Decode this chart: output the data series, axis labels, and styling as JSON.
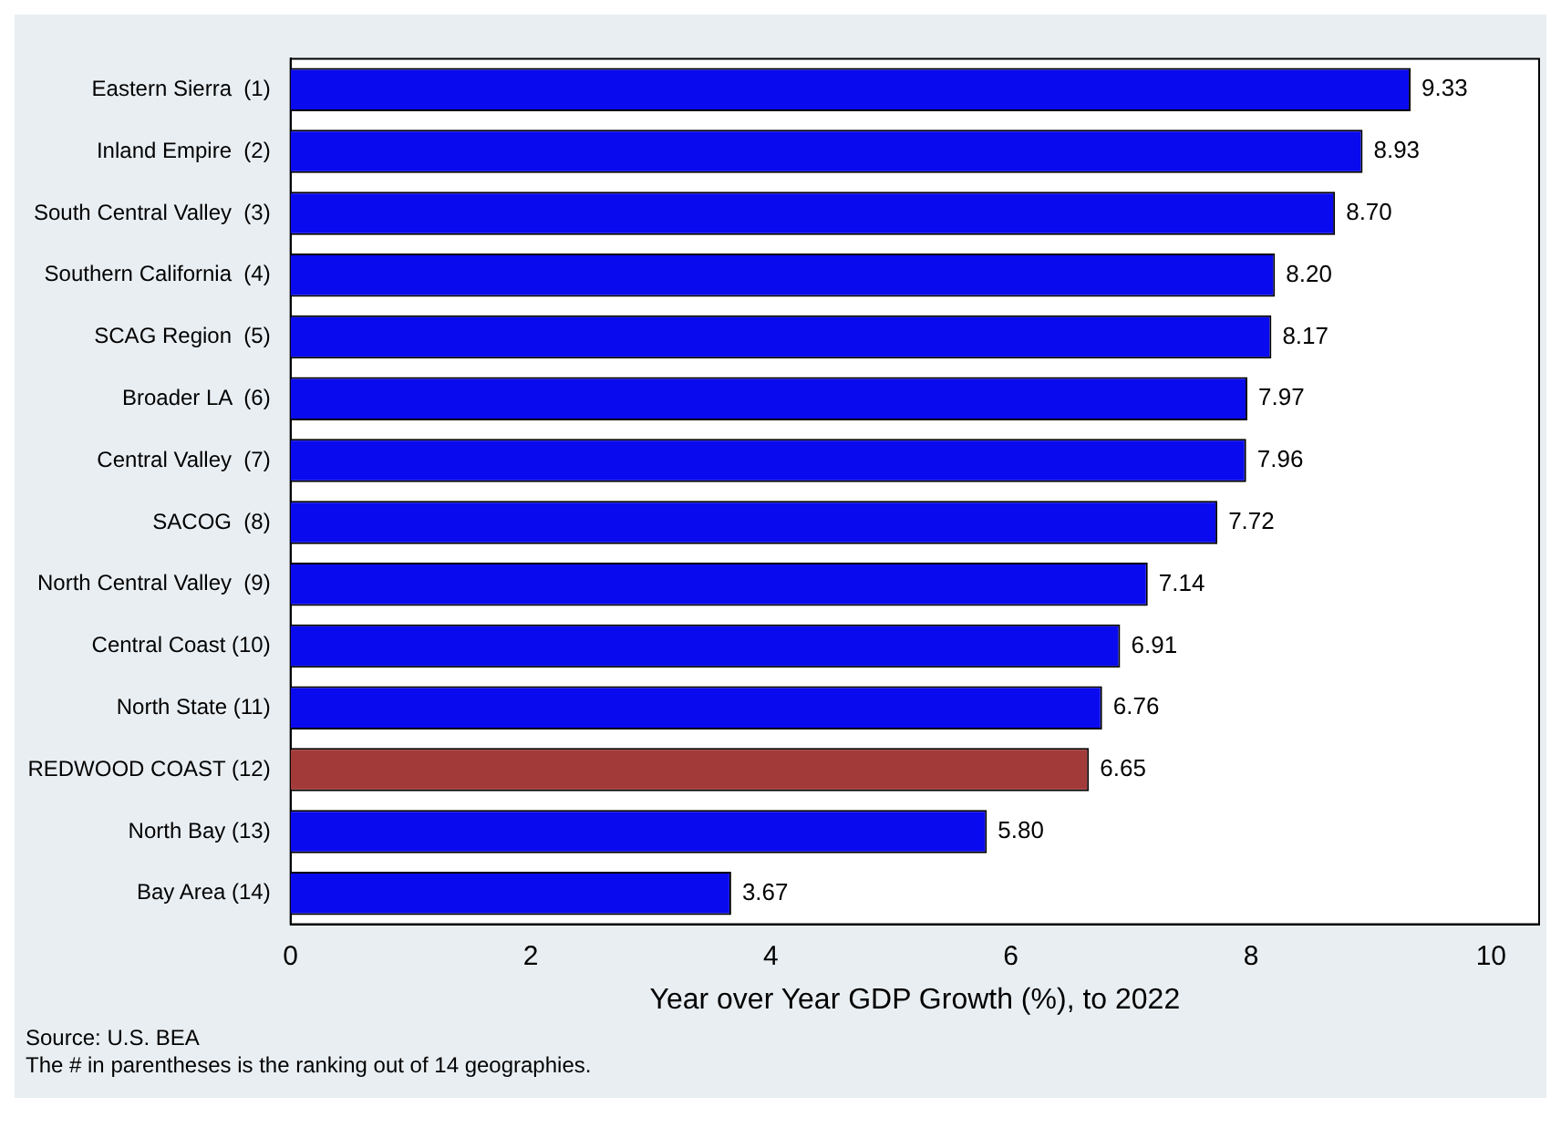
{
  "chart_data": {
    "type": "bar",
    "orientation": "horizontal",
    "xlabel": "Year over Year GDP Growth (%), to 2022",
    "categories": [
      "Eastern Sierra  (1)",
      "Inland Empire  (2)",
      "South Central Valley  (3)",
      "Southern California  (4)",
      "SCAG Region  (5)",
      "Broader LA  (6)",
      "Central Valley  (7)",
      "SACOG  (8)",
      "North Central Valley  (9)",
      "Central Coast (10)",
      "North State (11)",
      "REDWOOD COAST (12)",
      "North Bay (13)",
      "Bay Area (14)"
    ],
    "values": [
      9.33,
      8.93,
      8.7,
      8.2,
      8.17,
      7.97,
      7.96,
      7.72,
      7.14,
      6.91,
      6.76,
      6.65,
      5.8,
      3.67
    ],
    "value_labels": [
      "9.33",
      "8.93",
      "8.70",
      "8.20",
      "8.17",
      "7.97",
      "7.96",
      "7.72",
      "7.14",
      "6.91",
      "6.76",
      "6.65",
      "5.80",
      "3.67"
    ],
    "colors": [
      "#0a0aee",
      "#0a0aee",
      "#0a0aee",
      "#0a0aee",
      "#0a0aee",
      "#0a0aee",
      "#0a0aee",
      "#0a0aee",
      "#0a0aee",
      "#0a0aee",
      "#0a0aee",
      "#a33a3a",
      "#0a0aee",
      "#0a0aee"
    ],
    "xlim": [
      0,
      10.4
    ],
    "xticks": [
      0,
      2,
      4,
      6,
      8,
      10
    ],
    "grid": false,
    "legend": false,
    "annotations": [
      "Source: U.S. BEA",
      "The # in parentheses is the ranking out of 14 geographies."
    ]
  }
}
